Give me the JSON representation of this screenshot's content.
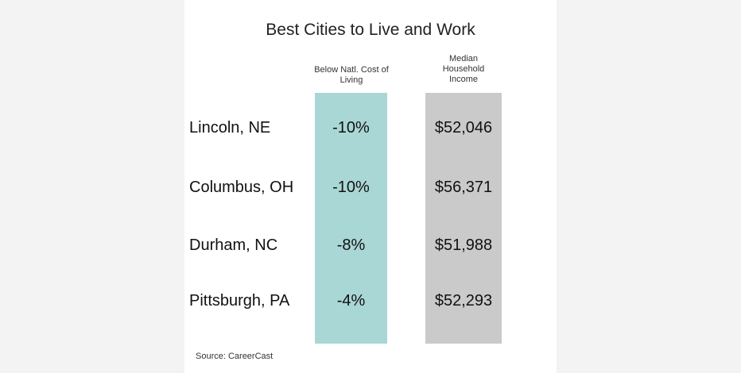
{
  "title": "Best Cities to Live and Work",
  "table": {
    "columns": [
      "Below Natl. Cost of Living",
      "Median Household Income"
    ],
    "rows": [
      [
        "Lincoln, NE",
        "-10%",
        "$52,046"
      ],
      [
        "Columbus, OH",
        "-10%",
        "$56,371"
      ],
      [
        "Durham, NC",
        "-8%",
        "$51,988"
      ],
      [
        "Pittsburgh, PA",
        "-4%",
        "$52,293"
      ]
    ]
  },
  "source": "Source:  CareerCast"
}
